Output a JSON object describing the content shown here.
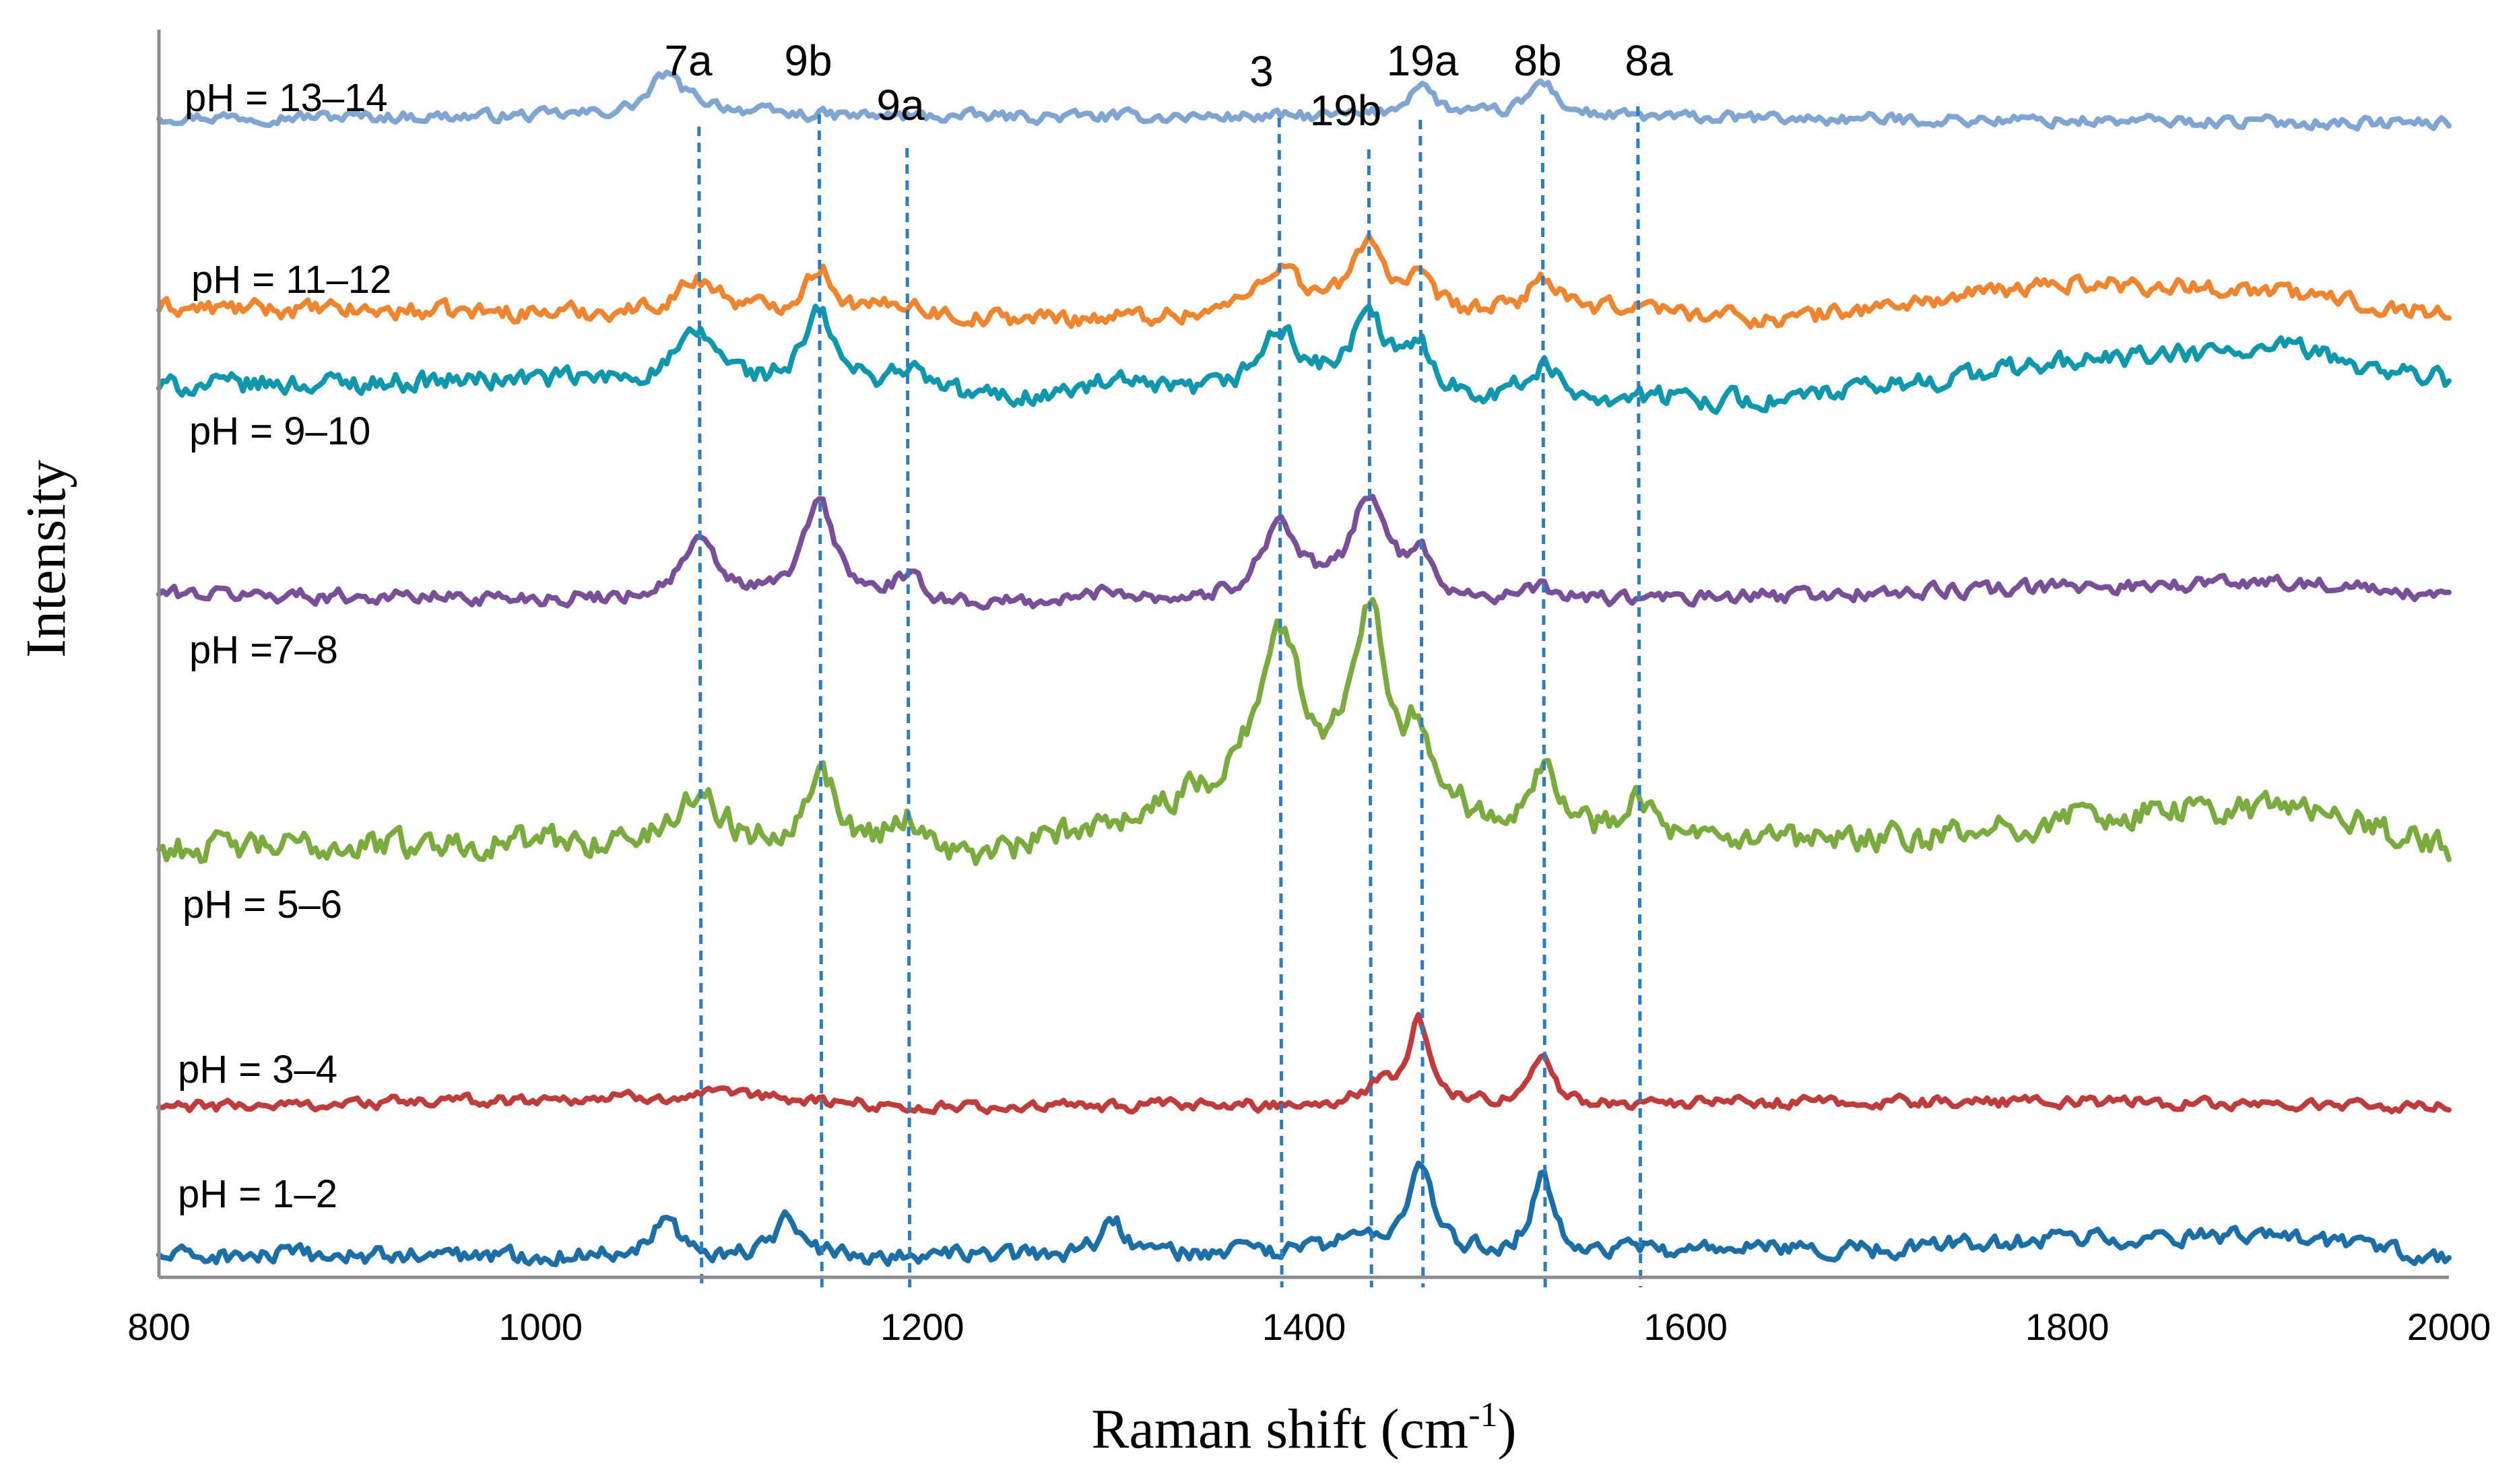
{
  "chart_data": {
    "type": "line",
    "title": "",
    "xlabel": "Raman shift (cm",
    "xlabel_sup": "-1",
    "xlabel_close": ")",
    "ylabel": "Intensity",
    "xlim": [
      800,
      2000
    ],
    "xticks": [
      800,
      1000,
      1200,
      1400,
      1600,
      1800,
      2000
    ],
    "xtick_labels": [
      "800",
      "1000",
      "1200",
      "1400",
      "1600",
      "1800",
      "2000"
    ],
    "grid": false,
    "legend": "inline labels at left of each trace",
    "bands": [
      {
        "label": "7a",
        "x": 1083
      },
      {
        "label": "9b",
        "x": 1146
      },
      {
        "label": "9a",
        "x": 1192
      },
      {
        "label": "3",
        "x": 1387
      },
      {
        "label": "19b",
        "x": 1434
      },
      {
        "label": "19a",
        "x": 1461
      },
      {
        "label": "8b",
        "x": 1525
      },
      {
        "label": "8a",
        "x": 1575
      }
    ],
    "series": [
      {
        "name": "pH = 13–14",
        "color": "#7fa5d3",
        "baseline": 0.93,
        "noise": 0.004,
        "trend": [
          [
            800,
            0.0
          ],
          [
            1500,
            0.0
          ],
          [
            2000,
            -0.005
          ]
        ],
        "peaks": [
          [
            1065,
            0.027,
            9
          ],
          [
            1080,
            0.01,
            25
          ],
          [
            1461,
            0.027,
            8
          ],
          [
            1525,
            0.028,
            9
          ]
        ]
      },
      {
        "name": "pH = 11–12",
        "color": "#f0852d",
        "baseline": 0.777,
        "noise": 0.006,
        "trend": [
          [
            800,
            0.0
          ],
          [
            1230,
            -0.01
          ],
          [
            1600,
            -0.005
          ],
          [
            1650,
            -0.01
          ],
          [
            1800,
            0.02
          ],
          [
            1900,
            0.015
          ],
          [
            1950,
            0.005
          ],
          [
            2000,
            -0.005
          ]
        ],
        "peaks": [
          [
            1083,
            0.028,
            15
          ],
          [
            1146,
            0.038,
            10
          ],
          [
            1192,
            0.012,
            12
          ],
          [
            1387,
            0.04,
            14
          ],
          [
            1434,
            0.06,
            10
          ],
          [
            1461,
            0.022,
            8
          ],
          [
            1525,
            0.03,
            9
          ],
          [
            1575,
            0.008,
            10
          ]
        ]
      },
      {
        "name": "pH = 9–10",
        "color": "#0d98ae",
        "baseline": 0.714,
        "noise": 0.007,
        "trend": [
          [
            800,
            0.0
          ],
          [
            1000,
            0.005
          ],
          [
            1230,
            -0.012
          ],
          [
            1600,
            -0.01
          ],
          [
            1650,
            -0.012
          ],
          [
            1800,
            0.02
          ],
          [
            1920,
            0.03
          ],
          [
            1960,
            0.015
          ],
          [
            2000,
            0.005
          ]
        ],
        "peaks": [
          [
            1083,
            0.04,
            15
          ],
          [
            1146,
            0.06,
            10
          ],
          [
            1192,
            0.02,
            14
          ],
          [
            1300,
            0.012,
            20
          ],
          [
            1387,
            0.05,
            15
          ],
          [
            1434,
            0.06,
            12
          ],
          [
            1461,
            0.035,
            8
          ],
          [
            1525,
            0.025,
            9
          ]
        ]
      },
      {
        "name": "pH =7–8",
        "color": "#7a4f9a",
        "baseline": 0.548,
        "noise": 0.005,
        "trend": [
          [
            800,
            0.0
          ],
          [
            1230,
            -0.01
          ],
          [
            1600,
            -0.005
          ],
          [
            1800,
            0.005
          ],
          [
            1920,
            0.01
          ],
          [
            2000,
            -0.005
          ]
        ],
        "peaks": [
          [
            1083,
            0.045,
            12
          ],
          [
            1146,
            0.08,
            10
          ],
          [
            1192,
            0.018,
            10
          ],
          [
            1300,
            0.01,
            15
          ],
          [
            1387,
            0.062,
            12
          ],
          [
            1434,
            0.083,
            11
          ],
          [
            1461,
            0.03,
            8
          ],
          [
            1525,
            0.008,
            10
          ]
        ]
      },
      {
        "name": "pH = 5–6",
        "color": "#7aab3d",
        "baseline": 0.343,
        "noise": 0.01,
        "trend": [
          [
            800,
            0.0
          ],
          [
            1000,
            0.005
          ],
          [
            1230,
            -0.012
          ],
          [
            1300,
            0.02
          ],
          [
            1360,
            0.04
          ],
          [
            1500,
            0.015
          ],
          [
            1600,
            0.0
          ],
          [
            1750,
            0.01
          ],
          [
            1800,
            0.025
          ],
          [
            1920,
            0.035
          ],
          [
            2000,
            0.0
          ]
        ],
        "peaks": [
          [
            1083,
            0.045,
            14
          ],
          [
            1146,
            0.065,
            11
          ],
          [
            1192,
            0.03,
            14
          ],
          [
            1387,
            0.13,
            14
          ],
          [
            1434,
            0.16,
            12
          ],
          [
            1461,
            0.055,
            8
          ],
          [
            1525,
            0.055,
            9
          ],
          [
            1575,
            0.04,
            10
          ]
        ]
      },
      {
        "name": "pH = 3–4",
        "color": "#c23b3b",
        "baseline": 0.136,
        "noise": 0.004,
        "trend": [
          [
            800,
            0.0
          ],
          [
            1100,
            0.01
          ],
          [
            1200,
            0.0
          ],
          [
            1800,
            0.005
          ],
          [
            2000,
            0.0
          ]
        ],
        "peaks": [
          [
            1460,
            0.065,
            7
          ],
          [
            1440,
            0.015,
            10
          ],
          [
            1525,
            0.04,
            6
          ]
        ]
      },
      {
        "name": "pH = 1–2",
        "color": "#1b6fa8",
        "baseline": 0.017,
        "noise": 0.006,
        "trend": [
          [
            800,
            0.0
          ],
          [
            1200,
            0.0
          ],
          [
            1700,
            0.005
          ],
          [
            1800,
            0.015
          ],
          [
            1900,
            0.015
          ],
          [
            2000,
            0.0
          ]
        ],
        "peaks": [
          [
            1065,
            0.035,
            8
          ],
          [
            1130,
            0.035,
            6
          ],
          [
            1300,
            0.025,
            8
          ],
          [
            1461,
            0.07,
            7
          ],
          [
            1525,
            0.068,
            6
          ],
          [
            1430,
            0.015,
            12
          ]
        ]
      }
    ]
  }
}
